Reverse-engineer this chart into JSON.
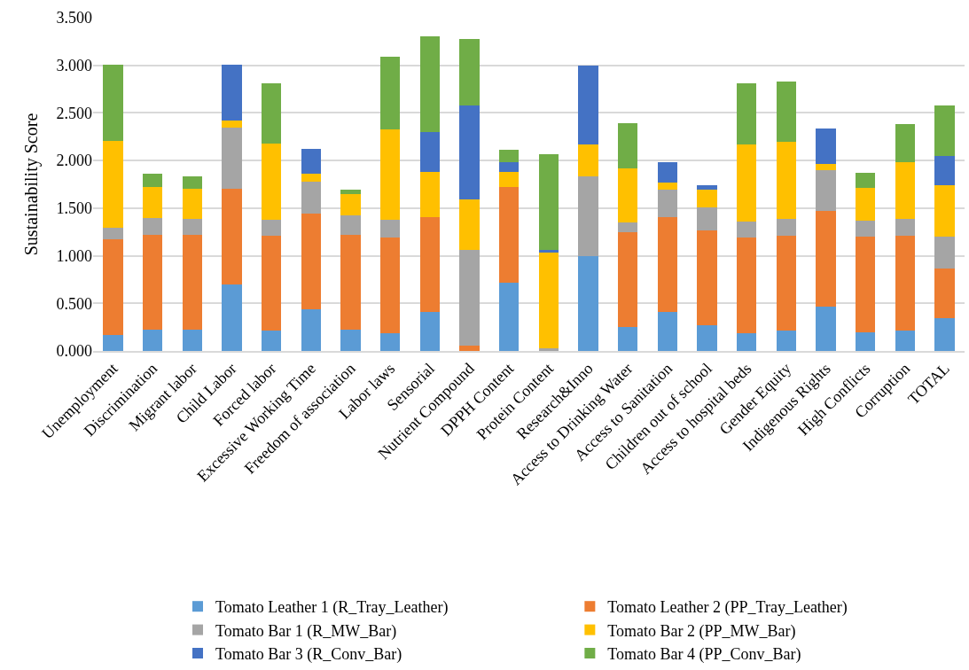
{
  "chart_data": {
    "type": "bar",
    "stacked": true,
    "ylabel": "Sustainability Score",
    "categories": [
      "Unemployment",
      "Discrimination",
      "Migrant labor",
      "Child Labor",
      "Forced labor",
      "Excessive Working Time",
      "Freedom of association",
      "Labor laws",
      "Sensorial",
      "Nutrient Compound",
      "DPPH Content",
      "Protein Content",
      "Research&Inno",
      "Access to Drinking Water",
      "Access to Sanitation",
      "Children out of school",
      "Access to hospital beds",
      "Gender Equity",
      "Indigenous Rights",
      "High Conflicts",
      "Corruption",
      "TOTAL"
    ],
    "series": [
      {
        "name": "Tomato Leather 1 (R_Tray_Leather)",
        "color": "#5b9bd5",
        "values": [
          0.17,
          0.22,
          0.22,
          0.7,
          0.21,
          0.44,
          0.22,
          0.19,
          0.41,
          0,
          0.72,
          0,
          1.0,
          0.25,
          0.41,
          0.27,
          0.19,
          0.21,
          0.47,
          0.2,
          0.21,
          0.34
        ]
      },
      {
        "name": "Tomato Leather 2 (PP_Tray_Leather)",
        "color": "#ed7d31",
        "values": [
          1.0,
          1.0,
          1.0,
          1.0,
          1.0,
          1.0,
          1.0,
          1.0,
          1.0,
          0.06,
          1.0,
          0,
          0,
          1.0,
          1.0,
          1.0,
          1.0,
          1.0,
          1.0,
          1.0,
          1.0,
          0.53
        ]
      },
      {
        "name": "Tomato Bar 1 (R_MW_Bar)",
        "color": "#a5a5a5",
        "values": [
          0.12,
          0.18,
          0.17,
          0.65,
          0.17,
          0.34,
          0.2,
          0.19,
          0,
          1.0,
          0,
          0.03,
          0.83,
          0.1,
          0.28,
          0.24,
          0.17,
          0.18,
          0.43,
          0.17,
          0.18,
          0.33
        ]
      },
      {
        "name": "Tomato Bar 2 (PP_MW_Bar)",
        "color": "#ffc000",
        "values": [
          0.92,
          0.32,
          0.31,
          0.07,
          0.8,
          0.08,
          0.23,
          0.95,
          0.47,
          0.53,
          0.16,
          1.0,
          0.34,
          0.57,
          0.08,
          0.18,
          0.81,
          0.81,
          0.06,
          0.34,
          0.59,
          0.54
        ]
      },
      {
        "name": "Tomato Bar 3 (R_Conv_Bar)",
        "color": "#4472c4",
        "values": [
          0,
          0,
          0,
          0.59,
          0,
          0.26,
          0,
          0,
          0.42,
          0.99,
          0.1,
          0.03,
          0.83,
          0,
          0.21,
          0.05,
          0,
          0,
          0.38,
          0,
          0,
          0.31
        ]
      },
      {
        "name": "Tomato Bar 4 (PP_Conv_Bar)",
        "color": "#70ad47",
        "values": [
          0.8,
          0.14,
          0.13,
          0,
          0.63,
          0,
          0.04,
          0.76,
          1.0,
          0.7,
          0.13,
          1.01,
          0,
          0.47,
          0,
          0,
          0.64,
          0.63,
          0,
          0.16,
          0.4,
          0.53
        ]
      }
    ],
    "ylim": [
      0,
      3.5
    ],
    "yticks": [
      {
        "value": 0,
        "label": "0.000"
      },
      {
        "value": 0.5,
        "label": "0.500"
      },
      {
        "value": 1,
        "label": "1.000"
      },
      {
        "value": 1.5,
        "label": "1.500"
      },
      {
        "value": 2,
        "label": "2.000"
      },
      {
        "value": 2.5,
        "label": "2.500"
      },
      {
        "value": 3,
        "label": "3.000"
      },
      {
        "value": 3.5,
        "label": "3.500"
      }
    ],
    "grid": "y",
    "legend": "bottom"
  }
}
